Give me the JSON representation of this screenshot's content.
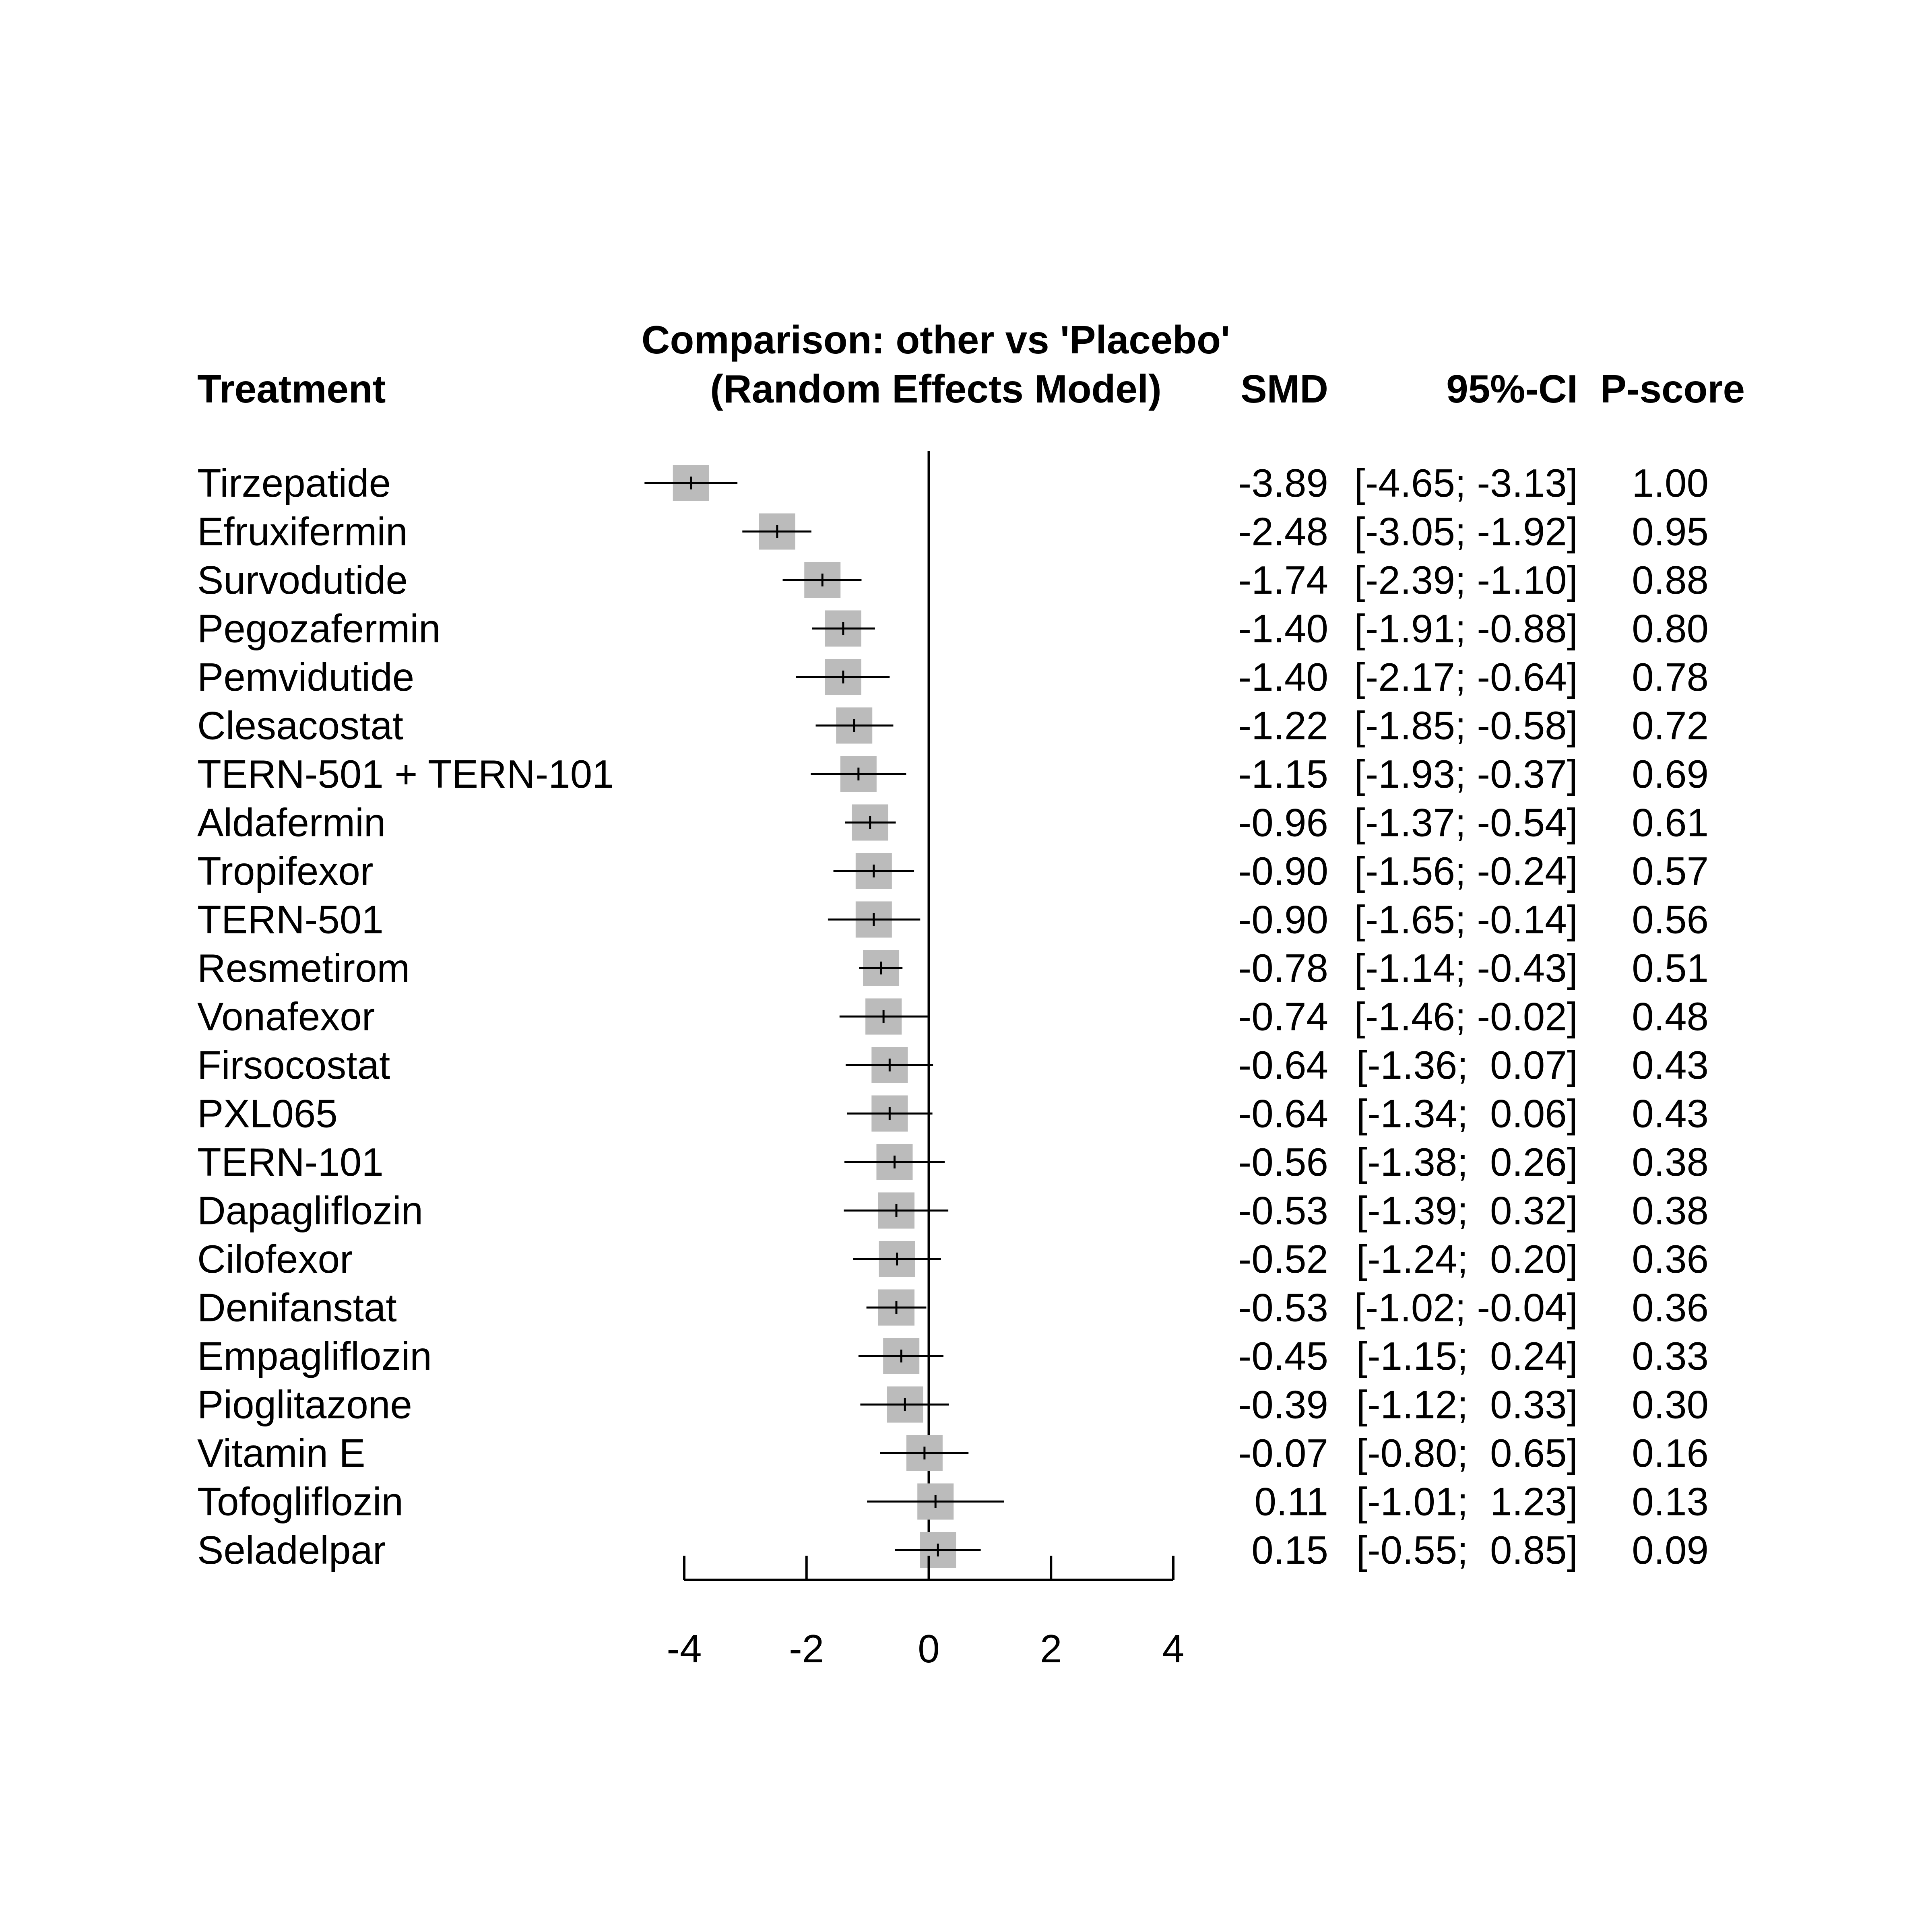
{
  "chart_data": {
    "type": "forest",
    "title": "Comparison: other vs 'Placebo'",
    "subtitle": "(Random Effects Model)",
    "columns": {
      "treatment": "Treatment",
      "estimate": "SMD",
      "ci": "95%-CI",
      "score": "P-score"
    },
    "reference_value": 0,
    "xlim": [
      -4,
      4
    ],
    "xticks": [
      "-4",
      "-2",
      "0",
      "2",
      "4"
    ],
    "grid": false,
    "marker_color": "#bbbbbb",
    "line_color": "#000000",
    "rows": [
      {
        "treatment": "Tirzepatide",
        "smd": -3.89,
        "lower": -4.65,
        "upper": -3.13,
        "smd_text": "-3.89",
        "ci_text": "[-4.65; -3.13]",
        "pscore": "1.00"
      },
      {
        "treatment": "Efruxifermin",
        "smd": -2.48,
        "lower": -3.05,
        "upper": -1.92,
        "smd_text": "-2.48",
        "ci_text": "[-3.05; -1.92]",
        "pscore": "0.95"
      },
      {
        "treatment": "Survodutide",
        "smd": -1.74,
        "lower": -2.39,
        "upper": -1.1,
        "smd_text": "-1.74",
        "ci_text": "[-2.39; -1.10]",
        "pscore": "0.88"
      },
      {
        "treatment": "Pegozafermin",
        "smd": -1.4,
        "lower": -1.91,
        "upper": -0.88,
        "smd_text": "-1.40",
        "ci_text": "[-1.91; -0.88]",
        "pscore": "0.80"
      },
      {
        "treatment": "Pemvidutide",
        "smd": -1.4,
        "lower": -2.17,
        "upper": -0.64,
        "smd_text": "-1.40",
        "ci_text": "[-2.17; -0.64]",
        "pscore": "0.78"
      },
      {
        "treatment": "Clesacostat",
        "smd": -1.22,
        "lower": -1.85,
        "upper": -0.58,
        "smd_text": "-1.22",
        "ci_text": "[-1.85; -0.58]",
        "pscore": "0.72"
      },
      {
        "treatment": "TERN-501 + TERN-101",
        "smd": -1.15,
        "lower": -1.93,
        "upper": -0.37,
        "smd_text": "-1.15",
        "ci_text": "[-1.93; -0.37]",
        "pscore": "0.69"
      },
      {
        "treatment": "Aldafermin",
        "smd": -0.96,
        "lower": -1.37,
        "upper": -0.54,
        "smd_text": "-0.96",
        "ci_text": "[-1.37; -0.54]",
        "pscore": "0.61"
      },
      {
        "treatment": "Tropifexor",
        "smd": -0.9,
        "lower": -1.56,
        "upper": -0.24,
        "smd_text": "-0.90",
        "ci_text": "[-1.56; -0.24]",
        "pscore": "0.57"
      },
      {
        "treatment": "TERN-501",
        "smd": -0.9,
        "lower": -1.65,
        "upper": -0.14,
        "smd_text": "-0.90",
        "ci_text": "[-1.65; -0.14]",
        "pscore": "0.56"
      },
      {
        "treatment": "Resmetirom",
        "smd": -0.78,
        "lower": -1.14,
        "upper": -0.43,
        "smd_text": "-0.78",
        "ci_text": "[-1.14; -0.43]",
        "pscore": "0.51"
      },
      {
        "treatment": "Vonafexor",
        "smd": -0.74,
        "lower": -1.46,
        "upper": -0.02,
        "smd_text": "-0.74",
        "ci_text": "[-1.46; -0.02]",
        "pscore": "0.48"
      },
      {
        "treatment": "Firsocostat",
        "smd": -0.64,
        "lower": -1.36,
        "upper": 0.07,
        "smd_text": "-0.64",
        "ci_text": "[-1.36;  0.07]",
        "pscore": "0.43"
      },
      {
        "treatment": "PXL065",
        "smd": -0.64,
        "lower": -1.34,
        "upper": 0.06,
        "smd_text": "-0.64",
        "ci_text": "[-1.34;  0.06]",
        "pscore": "0.43"
      },
      {
        "treatment": "TERN-101",
        "smd": -0.56,
        "lower": -1.38,
        "upper": 0.26,
        "smd_text": "-0.56",
        "ci_text": "[-1.38;  0.26]",
        "pscore": "0.38"
      },
      {
        "treatment": "Dapagliflozin",
        "smd": -0.53,
        "lower": -1.39,
        "upper": 0.32,
        "smd_text": "-0.53",
        "ci_text": "[-1.39;  0.32]",
        "pscore": "0.38"
      },
      {
        "treatment": "Cilofexor",
        "smd": -0.52,
        "lower": -1.24,
        "upper": 0.2,
        "smd_text": "-0.52",
        "ci_text": "[-1.24;  0.20]",
        "pscore": "0.36"
      },
      {
        "treatment": "Denifanstat",
        "smd": -0.53,
        "lower": -1.02,
        "upper": -0.04,
        "smd_text": "-0.53",
        "ci_text": "[-1.02; -0.04]",
        "pscore": "0.36"
      },
      {
        "treatment": "Empagliflozin",
        "smd": -0.45,
        "lower": -1.15,
        "upper": 0.24,
        "smd_text": "-0.45",
        "ci_text": "[-1.15;  0.24]",
        "pscore": "0.33"
      },
      {
        "treatment": "Pioglitazone",
        "smd": -0.39,
        "lower": -1.12,
        "upper": 0.33,
        "smd_text": "-0.39",
        "ci_text": "[-1.12;  0.33]",
        "pscore": "0.30"
      },
      {
        "treatment": "Vitamin E",
        "smd": -0.07,
        "lower": -0.8,
        "upper": 0.65,
        "smd_text": "-0.07",
        "ci_text": "[-0.80;  0.65]",
        "pscore": "0.16"
      },
      {
        "treatment": "Tofogliflozin",
        "smd": 0.11,
        "lower": -1.01,
        "upper": 1.23,
        "smd_text": "0.11",
        "ci_text": "[-1.01;  1.23]",
        "pscore": "0.13"
      },
      {
        "treatment": "Seladelpar",
        "smd": 0.15,
        "lower": -0.55,
        "upper": 0.85,
        "smd_text": "0.15",
        "ci_text": "[-0.55;  0.85]",
        "pscore": "0.09"
      }
    ]
  }
}
